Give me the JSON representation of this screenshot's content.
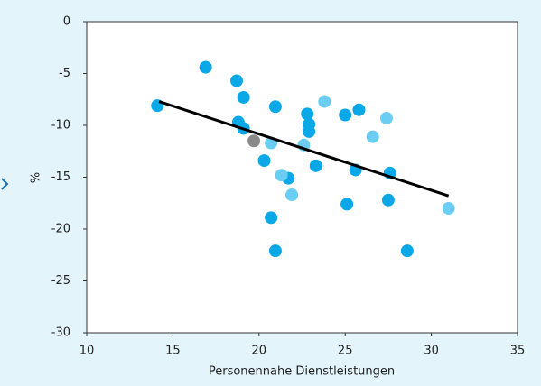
{
  "chart_data": {
    "type": "scatter",
    "xlabel": "Personennahe Dienstleistungen",
    "ylabel": "%",
    "xlim": [
      10,
      35
    ],
    "ylim": [
      -30,
      0
    ],
    "xticks": [
      10,
      15,
      20,
      25,
      30,
      35
    ],
    "yticks": [
      0,
      -5,
      -10,
      -15,
      -20,
      -25,
      -30
    ],
    "series": [
      {
        "color": "#0aa8e6",
        "x": [
          14.1,
          16.9,
          18.7,
          19.1,
          18.8,
          19.1,
          20.3,
          20.7,
          20.95,
          20.95,
          22.8,
          22.9,
          22.9,
          21.7,
          23.3,
          25.0,
          25.8,
          25.6,
          25.1,
          27.6,
          27.5,
          28.6
        ],
        "y": [
          -8.1,
          -4.4,
          -5.7,
          -7.3,
          -9.7,
          -10.3,
          -13.4,
          -18.9,
          -22.1,
          -8.2,
          -8.9,
          -9.9,
          -10.6,
          -15.1,
          -13.9,
          -9.0,
          -8.5,
          -14.3,
          -17.6,
          -14.6,
          -17.2,
          -22.1
        ]
      },
      {
        "color": "#6ccdf2",
        "x": [
          23.8,
          27.4,
          26.6,
          22.6,
          20.7,
          21.3,
          21.9,
          31.0
        ],
        "y": [
          -7.7,
          -9.3,
          -11.1,
          -11.9,
          -11.7,
          -14.8,
          -16.7,
          -18.0
        ]
      },
      {
        "color": "#8a8a8a",
        "x": [
          19.7
        ],
        "y": [
          -11.5
        ]
      }
    ],
    "trend": {
      "color": "#000000",
      "x": [
        14.2,
        31.0
      ],
      "y": [
        -7.7,
        -16.8
      ]
    }
  }
}
